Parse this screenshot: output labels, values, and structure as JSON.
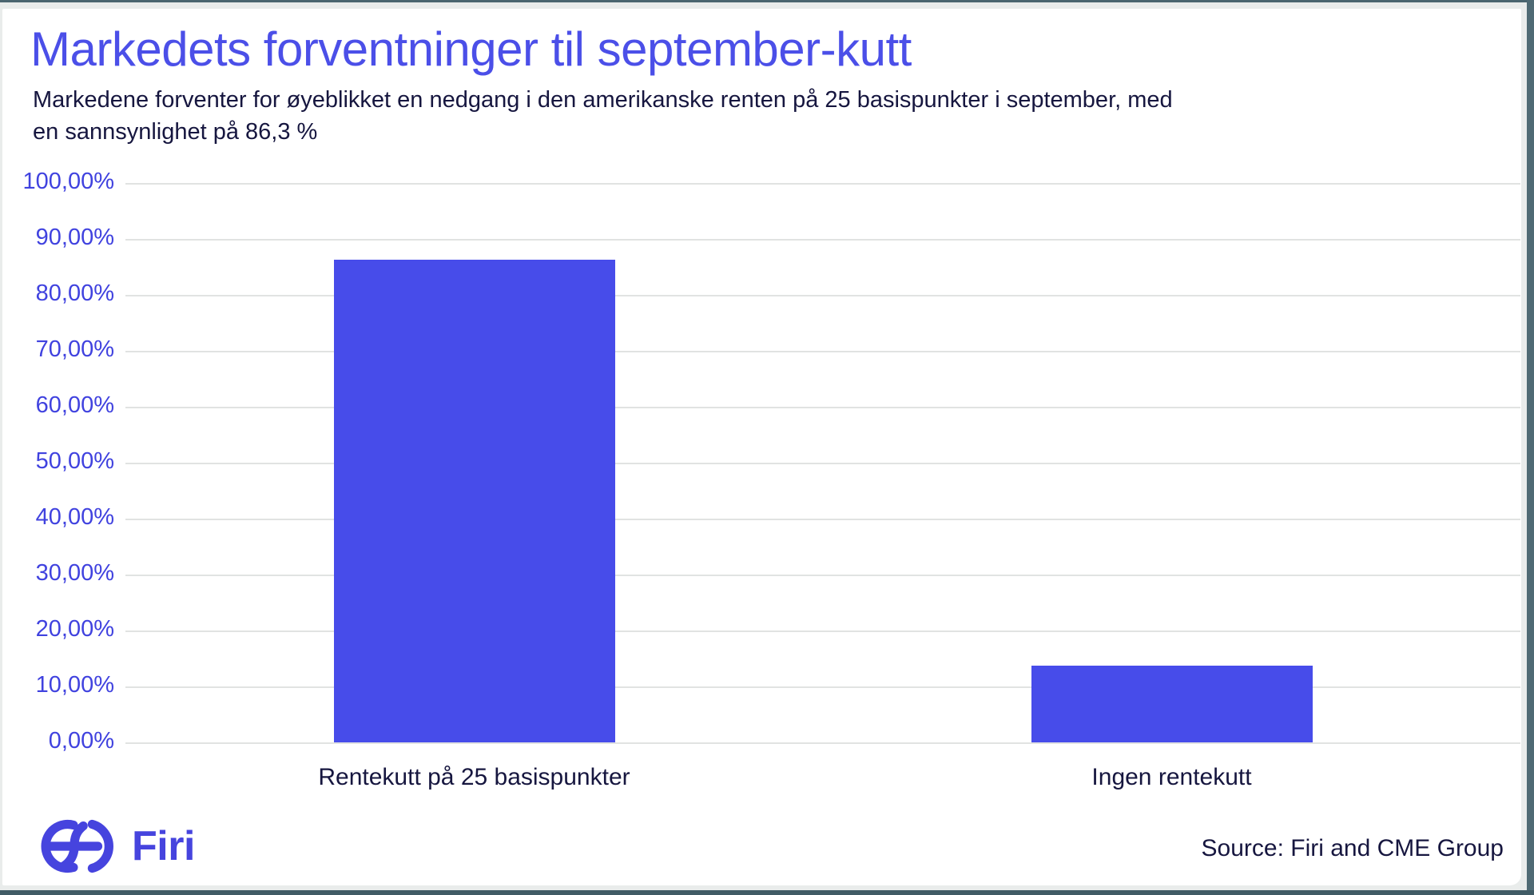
{
  "colors": {
    "accent_bar": "#474cea",
    "title_blue": "#4b4fe8",
    "tick_blue": "#4042df",
    "text_navy": "#16163f",
    "frame_slate": "#4f6a74",
    "gridline_gray": "#e1e3e2",
    "brand_logo_blue": "#4644de"
  },
  "header": {
    "title": "Markedets forventninger til september-kutt",
    "subtitle_line1": "Markedene forventer for øyeblikket en nedgang i den amerikanske renten på 25 basispunkter i september, med",
    "subtitle_line2": "en sannsynlighet på 86,3 %"
  },
  "chart_data": {
    "type": "bar",
    "title": "Markedets forventninger til september-kutt",
    "categories": [
      "Rentekutt på 25 basispunkter",
      "Ingen rentekutt"
    ],
    "values": [
      86.3,
      13.7
    ],
    "xlabel": "",
    "ylabel": "",
    "ylim": [
      0,
      100
    ],
    "grid": "horizontal",
    "legend": "none",
    "bar_color": "#474cea",
    "yticks": [
      {
        "value": 0,
        "label": "0,00%"
      },
      {
        "value": 10,
        "label": "10,00%"
      },
      {
        "value": 20,
        "label": "20,00%"
      },
      {
        "value": 30,
        "label": "30,00%"
      },
      {
        "value": 40,
        "label": "40,00%"
      },
      {
        "value": 50,
        "label": "50,00%"
      },
      {
        "value": 60,
        "label": "60,00%"
      },
      {
        "value": 70,
        "label": "70,00%"
      },
      {
        "value": 80,
        "label": "80,00%"
      },
      {
        "value": 90,
        "label": "90,00%"
      },
      {
        "value": 100,
        "label": "100,00%"
      }
    ]
  },
  "footer": {
    "logo_text": "Firi",
    "source": "Source: Firi and CME Group"
  }
}
